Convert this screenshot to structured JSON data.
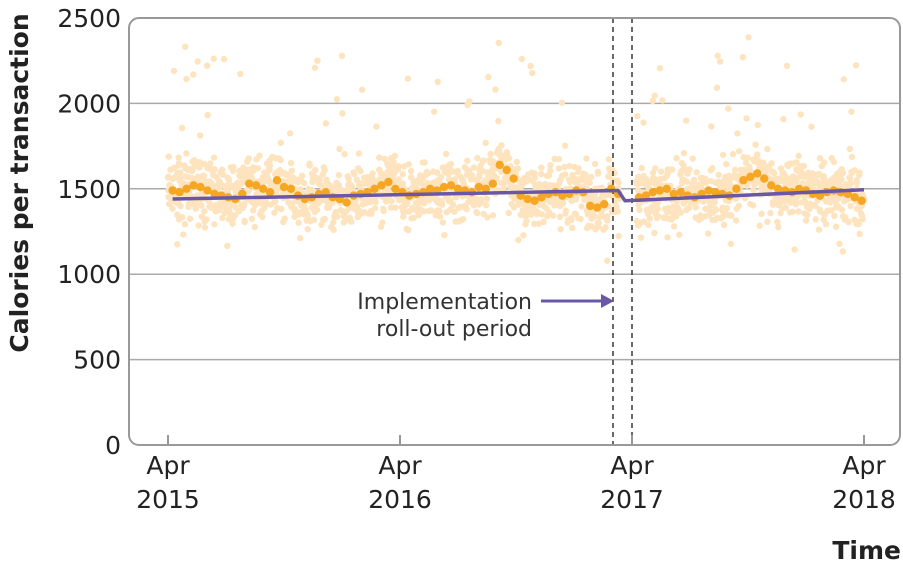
{
  "chart_data": {
    "type": "scatter",
    "ylabel": "Calories per transaction",
    "xlabel": "Time",
    "ylim": [
      0,
      2500
    ],
    "yticks": [
      0,
      500,
      1000,
      1500,
      2000,
      2500
    ],
    "xticks": [
      {
        "month": "Apr",
        "year": "2015",
        "t": 0
      },
      {
        "month": "Apr",
        "year": "2016",
        "t": 1
      },
      {
        "month": "Apr",
        "year": "2017",
        "t": 2
      },
      {
        "month": "Apr",
        "year": "2018",
        "t": 3
      }
    ],
    "grid": "horizontal",
    "colors": {
      "daily_points": "#fde4bf",
      "weekly_points": "#f5a623",
      "trend_line": "#6a58a6",
      "grid": "#aaaaaa",
      "frame": "#999999",
      "period_lines": "#444444"
    },
    "implementation_period": {
      "start_t": 1.94,
      "end_t": 2.02
    },
    "annotation": {
      "line1": "Implementation",
      "line2": "roll-out period"
    },
    "series": [
      {
        "kind": "trend",
        "segments": [
          {
            "x": [
              0.02,
              1.94
            ],
            "y": [
              1440,
              1490
            ]
          },
          {
            "x": [
              1.94,
              1.97
            ],
            "y": [
              1490,
              1430
            ]
          },
          {
            "x": [
              1.97,
              3.0
            ],
            "y": [
              1430,
              1495
            ]
          }
        ]
      },
      {
        "kind": "weekly",
        "x": [
          0.02,
          0.05,
          0.08,
          0.11,
          0.14,
          0.17,
          0.2,
          0.23,
          0.26,
          0.29,
          0.32,
          0.35,
          0.38,
          0.41,
          0.44,
          0.47,
          0.5,
          0.53,
          0.56,
          0.59,
          0.62,
          0.65,
          0.68,
          0.71,
          0.74,
          0.77,
          0.8,
          0.83,
          0.86,
          0.89,
          0.92,
          0.95,
          0.98,
          1.01,
          1.04,
          1.07,
          1.1,
          1.13,
          1.16,
          1.19,
          1.22,
          1.25,
          1.28,
          1.31,
          1.34,
          1.37,
          1.4,
          1.43,
          1.46,
          1.49,
          1.52,
          1.55,
          1.58,
          1.61,
          1.64,
          1.67,
          1.7,
          1.73,
          1.76,
          1.79,
          1.82,
          1.85,
          1.88,
          1.91,
          1.94,
          2.03,
          2.06,
          2.09,
          2.12,
          2.15,
          2.18,
          2.21,
          2.24,
          2.27,
          2.3,
          2.33,
          2.36,
          2.39,
          2.42,
          2.45,
          2.48,
          2.51,
          2.54,
          2.57,
          2.6,
          2.63,
          2.66,
          2.69,
          2.72,
          2.75,
          2.78,
          2.81,
          2.84,
          2.87,
          2.9,
          2.93,
          2.96,
          2.99
        ],
        "y": [
          1490,
          1480,
          1500,
          1520,
          1510,
          1490,
          1470,
          1460,
          1450,
          1440,
          1470,
          1530,
          1520,
          1500,
          1480,
          1550,
          1510,
          1500,
          1460,
          1440,
          1450,
          1470,
          1480,
          1450,
          1440,
          1420,
          1460,
          1470,
          1480,
          1500,
          1520,
          1540,
          1500,
          1480,
          1460,
          1470,
          1480,
          1500,
          1490,
          1510,
          1520,
          1500,
          1490,
          1480,
          1510,
          1500,
          1530,
          1640,
          1610,
          1560,
          1460,
          1440,
          1430,
          1450,
          1470,
          1480,
          1460,
          1470,
          1490,
          1480,
          1400,
          1390,
          1410,
          1500,
          1470,
          1450,
          1460,
          1480,
          1490,
          1500,
          1470,
          1480,
          1460,
          1450,
          1470,
          1490,
          1480,
          1470,
          1460,
          1500,
          1550,
          1570,
          1590,
          1560,
          1520,
          1500,
          1490,
          1480,
          1500,
          1490,
          1470,
          1460,
          1480,
          1490,
          1480,
          1470,
          1450,
          1430
        ]
      }
    ]
  }
}
